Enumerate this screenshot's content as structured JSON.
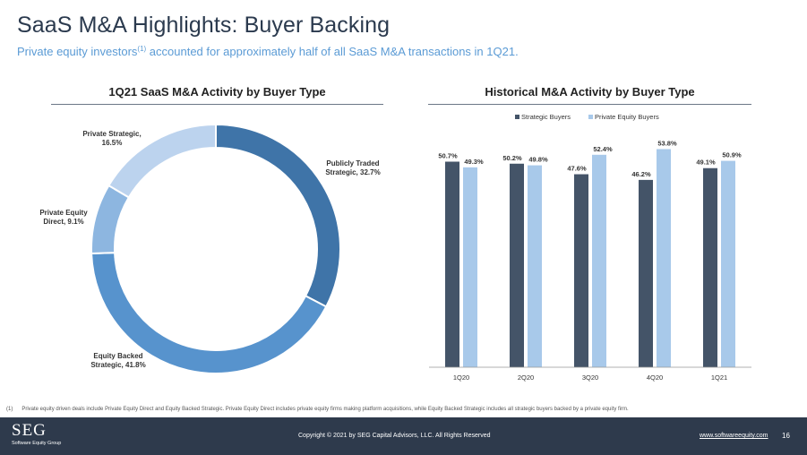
{
  "page": {
    "title": "SaaS M&A Highlights: Buyer Backing",
    "subtitle_pre": "Private equity investors",
    "subtitle_sup": "(1)",
    "subtitle_post": " accounted for approximately half of all SaaS M&A transactions in 1Q21."
  },
  "colors": {
    "navy": "#3f4e63",
    "strategic": "#445468",
    "private_equity": "#a8c9ea",
    "donut_public": "#3f74a8",
    "donut_equity_backed": "#5793cd",
    "donut_pe_direct": "#8db6e0",
    "donut_private_strategic": "#bcd3ee"
  },
  "chart_data": [
    {
      "type": "pie",
      "title": "1Q21 SaaS M&A Activity by Buyer Type",
      "donut": true,
      "slices": [
        {
          "label_line1": "Publicly Traded",
          "label_line2": "Strategic, 32.7%",
          "value": 32.7
        },
        {
          "label_line1": "Equity Backed",
          "label_line2": "Strategic, 41.8%",
          "value": 41.8
        },
        {
          "label_line1": "Private Equity",
          "label_line2": "Direct, 9.1%",
          "value": 9.1
        },
        {
          "label_line1": "Private Strategic,",
          "label_line2": "16.5%",
          "value": 16.5
        }
      ]
    },
    {
      "type": "bar",
      "title": "Historical M&A Activity by Buyer Type",
      "categories": [
        "1Q20",
        "2Q20",
        "3Q20",
        "4Q20",
        "1Q21"
      ],
      "series": [
        {
          "name": "Strategic Buyers",
          "values": [
            50.7,
            50.2,
            47.6,
            46.2,
            49.1
          ],
          "labels": [
            "50.7%",
            "50.2%",
            "47.6%",
            "46.2%",
            "49.1%"
          ]
        },
        {
          "name": "Private Equity Buyers",
          "values": [
            49.3,
            49.8,
            52.4,
            53.8,
            50.9
          ],
          "labels": [
            "49.3%",
            "49.8%",
            "52.4%",
            "53.8%",
            "50.9%"
          ]
        }
      ],
      "ylim": [
        0,
        60
      ],
      "legend": "top"
    }
  ],
  "footnote": {
    "number": "(1)",
    "text": "Private equity driven deals include Private Equity Direct and Equity Backed Strategic. Private Equity Direct includes private equity firms making platform acquisitions, while Equity Backed Strategic includes all strategic buyers backed by a private equity firm."
  },
  "footer": {
    "logo": "SEG",
    "logo_sub": "Software Equity Group",
    "copyright": "Copyright © 2021 by SEG Capital Advisors, LLC. All Rights Reserved",
    "website": "www.softwareequity.com",
    "page_number": "16"
  }
}
